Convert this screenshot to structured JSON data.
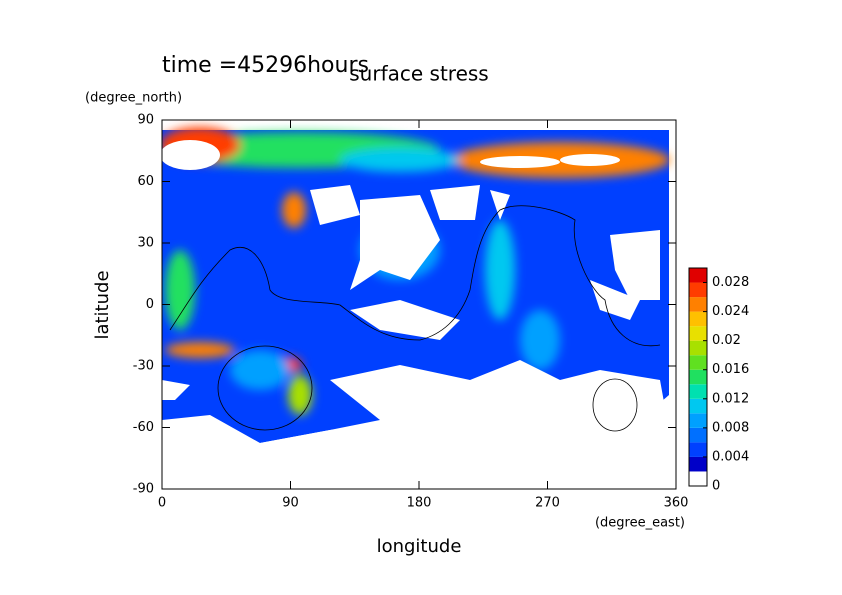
{
  "chart_data": {
    "type": "contour",
    "title": "surface stress",
    "subtitle": "time =45296hours",
    "x_label": "longitude",
    "x_unit": "(degree_east)",
    "y_label": "latitude",
    "y_unit": "(degree_north)",
    "xlim": [
      0,
      360
    ],
    "xticks": [
      0,
      90,
      180,
      270,
      360
    ],
    "ylim": [
      -90,
      90
    ],
    "yticks": [
      90,
      60,
      30,
      0,
      -30,
      -60,
      -90
    ],
    "colorbar": {
      "lim": [
        0,
        0.03
      ],
      "ticks": [
        0,
        0.004,
        0.008,
        0.012,
        0.016,
        0.02,
        0.024,
        0.028
      ],
      "levels": [
        0,
        0.002,
        0.004,
        0.006,
        0.008,
        0.01,
        0.012,
        0.014,
        0.016,
        0.018,
        0.02,
        0.022,
        0.024,
        0.026,
        0.028,
        0.03
      ],
      "colors": [
        "#ffffff",
        "#0000c8",
        "#0040ff",
        "#0070ff",
        "#00a0ff",
        "#00c8f0",
        "#00e0b0",
        "#20e060",
        "#60e020",
        "#a8e000",
        "#e8e000",
        "#ffc000",
        "#ff8000",
        "#ff3c00",
        "#e00000"
      ]
    }
  }
}
